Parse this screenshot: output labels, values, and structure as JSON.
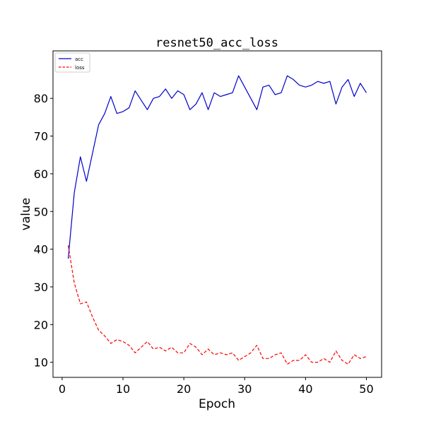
{
  "chart_data": {
    "type": "line",
    "title": "resnet50_acc_loss",
    "xlabel": "Epoch",
    "ylabel": "value",
    "xlim": [
      -1.5,
      52.5
    ],
    "ylim": [
      6,
      92.6
    ],
    "xticks": [
      0,
      10,
      20,
      30,
      40,
      50
    ],
    "yticks": [
      10,
      20,
      30,
      40,
      50,
      60,
      70,
      80
    ],
    "grid": false,
    "legend_position": "top-left",
    "x": [
      1,
      2,
      3,
      4,
      5,
      6,
      7,
      8,
      9,
      10,
      11,
      12,
      13,
      14,
      15,
      16,
      17,
      18,
      19,
      20,
      21,
      22,
      23,
      24,
      25,
      26,
      27,
      28,
      29,
      30,
      31,
      32,
      33,
      34,
      35,
      36,
      37,
      38,
      39,
      40,
      41,
      42,
      43,
      44,
      45,
      46,
      47,
      48,
      49,
      50
    ],
    "series": [
      {
        "name": "acc",
        "color": "#0000cc",
        "style": "solid",
        "values": [
          37.5,
          55.0,
          64.5,
          58.0,
          65.5,
          73.0,
          76.0,
          80.5,
          76.0,
          76.5,
          77.5,
          82.0,
          79.5,
          77.0,
          80.0,
          80.5,
          82.5,
          80.0,
          82.0,
          81.0,
          77.0,
          78.5,
          81.5,
          77.0,
          81.5,
          80.5,
          81.0,
          81.5,
          86.0,
          83.0,
          80.0,
          77.0,
          83.0,
          83.5,
          81.0,
          81.5,
          86.0,
          85.0,
          83.5,
          83.0,
          83.5,
          84.5,
          84.0,
          84.5,
          78.5,
          83.0,
          85.0,
          80.5,
          84.0,
          81.5
        ]
      },
      {
        "name": "loss",
        "color": "#ff0000",
        "style": "dashed",
        "values": [
          41.0,
          31.0,
          25.5,
          26.0,
          22.0,
          18.5,
          17.0,
          15.0,
          16.0,
          15.5,
          14.5,
          12.5,
          14.0,
          15.5,
          13.5,
          14.0,
          13.0,
          14.0,
          12.5,
          12.5,
          15.0,
          14.0,
          12.0,
          13.5,
          12.0,
          12.5,
          12.0,
          12.5,
          10.5,
          11.5,
          12.5,
          14.5,
          11.0,
          11.0,
          12.0,
          12.5,
          9.5,
          10.5,
          10.5,
          12.0,
          10.0,
          10.0,
          11.0,
          10.0,
          13.0,
          10.5,
          9.5,
          12.0,
          11.0,
          11.5
        ]
      }
    ]
  }
}
